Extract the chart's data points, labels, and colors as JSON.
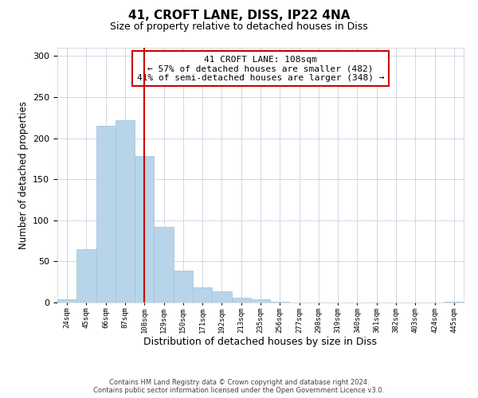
{
  "title": "41, CROFT LANE, DISS, IP22 4NA",
  "subtitle": "Size of property relative to detached houses in Diss",
  "xlabel": "Distribution of detached houses by size in Diss",
  "ylabel": "Number of detached properties",
  "bar_color": "#b8d4e8",
  "bar_edgecolor": "#a0c0d8",
  "bin_edges": [
    13.5,
    34.5,
    55.5,
    76.5,
    97.5,
    118.5,
    139.5,
    160.5,
    181.5,
    202.5,
    223.5,
    244.5,
    265.5,
    286.5,
    307.5,
    328.5,
    349.5,
    370.5,
    391.5,
    412.5,
    433.5,
    454.5
  ],
  "bin_labels": [
    "24sqm",
    "45sqm",
    "66sqm",
    "87sqm",
    "108sqm",
    "129sqm",
    "150sqm",
    "171sqm",
    "192sqm",
    "213sqm",
    "235sqm",
    "256sqm",
    "277sqm",
    "298sqm",
    "319sqm",
    "340sqm",
    "361sqm",
    "382sqm",
    "403sqm",
    "424sqm",
    "445sqm"
  ],
  "bar_heights": [
    4,
    65,
    215,
    222,
    178,
    92,
    39,
    18,
    14,
    6,
    4,
    1,
    0,
    0,
    0,
    0,
    0,
    0,
    0,
    0,
    1
  ],
  "vline_x": 108,
  "vline_color": "#cc0000",
  "ylim": [
    0,
    310
  ],
  "xlim": [
    13.5,
    454.5
  ],
  "annotation_line1": "41 CROFT LANE: 108sqm",
  "annotation_line2": "← 57% of detached houses are smaller (482)",
  "annotation_line3": "41% of semi-detached houses are larger (348) →",
  "annotation_box_color": "#ffffff",
  "annotation_box_edgecolor": "#cc0000",
  "footer_line1": "Contains HM Land Registry data © Crown copyright and database right 2024.",
  "footer_line2": "Contains public sector information licensed under the Open Government Licence v3.0.",
  "background_color": "#ffffff",
  "grid_color": "#d0d8e8",
  "yticks": [
    0,
    50,
    100,
    150,
    200,
    250,
    300
  ]
}
